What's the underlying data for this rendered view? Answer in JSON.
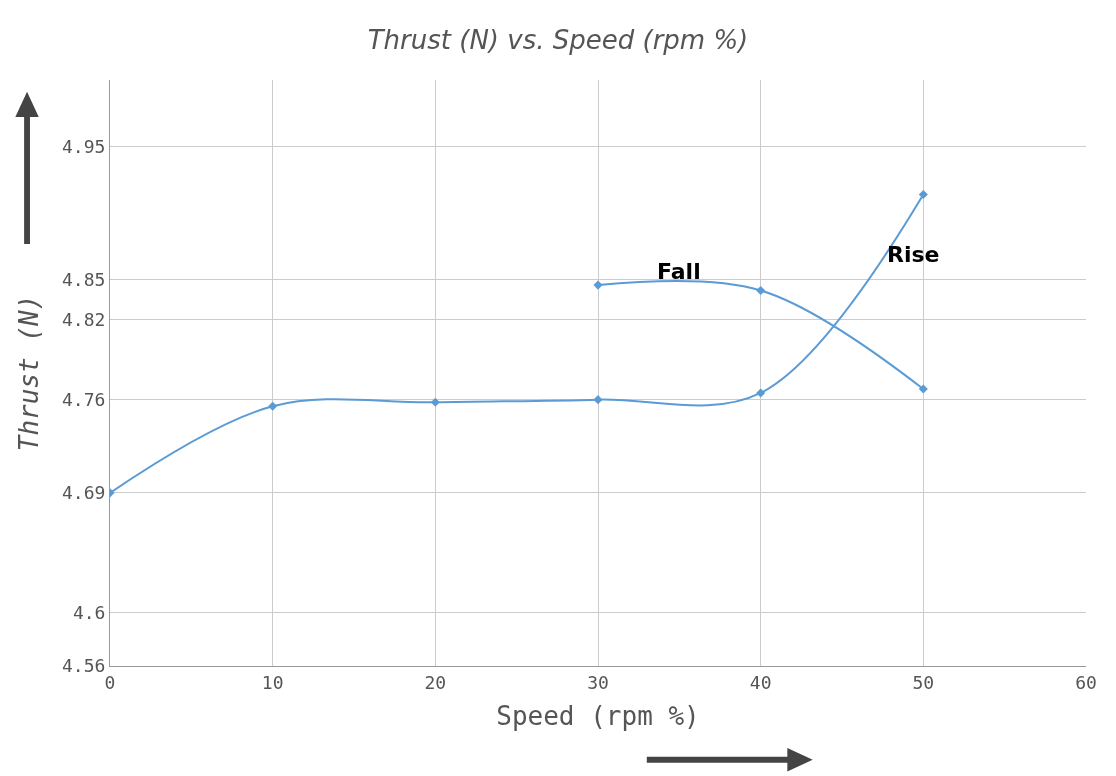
{
  "chart_data": {
    "type": "line",
    "title": "Thrust (N) vs. Speed (rpm %)",
    "xlabel": "Speed (rpm %)",
    "ylabel": "Thrust (N)",
    "series": [
      {
        "name": "Fall",
        "color": "#5b9bd5",
        "x": [
          30,
          40,
          50
        ],
        "values": [
          4.846,
          4.842,
          4.768
        ]
      },
      {
        "name": "Rise",
        "color": "#5b9bd5",
        "x": [
          0,
          10,
          20,
          30,
          40,
          50
        ],
        "values": [
          4.69,
          4.755,
          4.758,
          4.76,
          4.765,
          4.914
        ]
      }
    ],
    "xlim": [
      0,
      60
    ],
    "xticks": [
      0,
      10,
      20,
      30,
      40,
      50,
      60
    ],
    "ylim": [
      4.56,
      5.0
    ],
    "yticks": [
      4.56,
      4.6,
      4.69,
      4.76,
      4.82,
      4.85,
      4.95
    ],
    "grid": true,
    "legend": false,
    "marker": "diamond",
    "line_style": "solid"
  }
}
